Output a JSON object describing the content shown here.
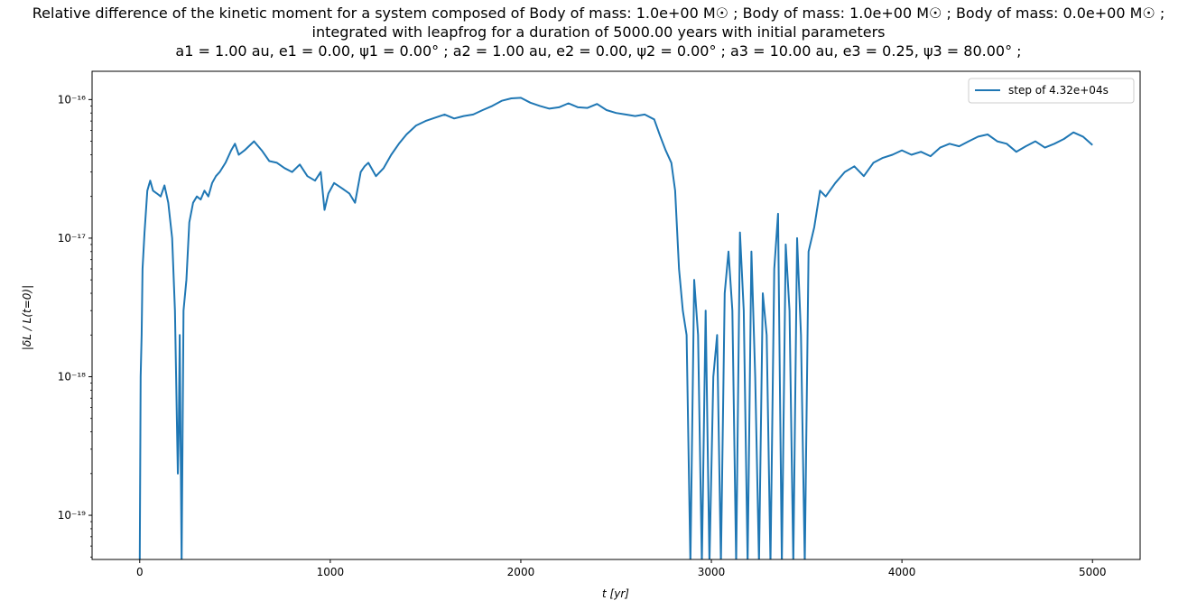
{
  "title": {
    "line1": "Relative difference of the kinetic moment for a system composed of Body of mass: 1.0e+00 M☉ ; Body of mass: 1.0e+00 M☉ ; Body of mass: 0.0e+00 M☉ ;",
    "line2": "integrated with leapfrog for a duration of 5000.00 years with initial parameters",
    "line3": "a1 = 1.00 au, e1 = 0.00, ψ1 = 0.00° ; a2 = 1.00 au, e2 = 0.00, ψ2 = 0.00° ; a3 = 10.00 au, e3 = 0.25, ψ3 = 80.00° ;"
  },
  "colors": {
    "series": "#1f77b4",
    "axes": "#000000",
    "background": "#ffffff"
  },
  "chart_data": {
    "type": "line",
    "xlabel": "t [yr]",
    "ylabel": "|δL / L(t=0)|",
    "yscale": "log",
    "xlim": [
      -250,
      5250
    ],
    "ylim": [
      4.8e-20,
      1.6e-16
    ],
    "x_ticks": [
      0,
      1000,
      2000,
      3000,
      4000,
      5000
    ],
    "x_tick_labels": [
      "0",
      "1000",
      "2000",
      "3000",
      "4000",
      "5000"
    ],
    "y_tick_exponents": [
      -19,
      -18,
      -17,
      -16
    ],
    "y_tick_labels": [
      "10⁻¹⁹",
      "10⁻¹⁸",
      "10⁻¹⁷",
      "10⁻¹⁶"
    ],
    "grid": false,
    "legend_position": "top-right",
    "series": [
      {
        "name": "step of 4.32e+04s",
        "x": [
          0,
          5,
          10,
          15,
          25,
          40,
          55,
          70,
          90,
          110,
          130,
          150,
          170,
          185,
          195,
          200,
          205,
          210,
          220,
          230,
          245,
          260,
          280,
          300,
          320,
          340,
          360,
          380,
          400,
          420,
          450,
          480,
          500,
          520,
          550,
          600,
          640,
          680,
          720,
          760,
          800,
          840,
          880,
          920,
          950,
          970,
          990,
          1020,
          1060,
          1100,
          1130,
          1160,
          1180,
          1200,
          1240,
          1280,
          1320,
          1360,
          1400,
          1450,
          1500,
          1550,
          1600,
          1650,
          1700,
          1750,
          1800,
          1850,
          1900,
          1950,
          2000,
          2050,
          2100,
          2150,
          2200,
          2250,
          2300,
          2350,
          2400,
          2450,
          2500,
          2550,
          2600,
          2650,
          2700,
          2730,
          2760,
          2790,
          2810,
          2830,
          2850,
          2870,
          2890,
          2910,
          2930,
          2950,
          2970,
          2990,
          3010,
          3030,
          3050,
          3070,
          3090,
          3110,
          3130,
          3150,
          3170,
          3190,
          3210,
          3230,
          3250,
          3270,
          3290,
          3310,
          3330,
          3350,
          3370,
          3390,
          3410,
          3430,
          3450,
          3470,
          3490,
          3510,
          3540,
          3570,
          3600,
          3650,
          3700,
          3750,
          3800,
          3850,
          3900,
          3950,
          4000,
          4050,
          4100,
          4150,
          4200,
          4250,
          4300,
          4350,
          4400,
          4450,
          4500,
          4550,
          4600,
          4650,
          4700,
          4750,
          4800,
          4850,
          4900,
          4950,
          5000
        ],
        "y": [
          4.5e-20,
          1e-18,
          2e-18,
          6e-18,
          1.1e-17,
          2.2e-17,
          2.6e-17,
          2.2e-17,
          2.1e-17,
          2e-17,
          2.4e-17,
          1.8e-17,
          1e-17,
          3e-18,
          5e-19,
          2e-19,
          4e-19,
          2e-18,
          4.5e-20,
          3e-18,
          5e-18,
          1.3e-17,
          1.8e-17,
          2e-17,
          1.9e-17,
          2.2e-17,
          2e-17,
          2.5e-17,
          2.8e-17,
          3e-17,
          3.5e-17,
          4.3e-17,
          4.8e-17,
          4e-17,
          4.3e-17,
          5e-17,
          4.3e-17,
          3.6e-17,
          3.5e-17,
          3.2e-17,
          3e-17,
          3.4e-17,
          2.8e-17,
          2.6e-17,
          3e-17,
          1.6e-17,
          2.1e-17,
          2.5e-17,
          2.3e-17,
          2.1e-17,
          1.8e-17,
          3e-17,
          3.3e-17,
          3.5e-17,
          2.8e-17,
          3.2e-17,
          4e-17,
          4.8e-17,
          5.6e-17,
          6.5e-17,
          7e-17,
          7.4e-17,
          7.8e-17,
          7.3e-17,
          7.6e-17,
          7.8e-17,
          8.4e-17,
          9e-17,
          9.8e-17,
          1.02e-16,
          1.03e-16,
          9.5e-17,
          9e-17,
          8.6e-17,
          8.8e-17,
          9.4e-17,
          8.8e-17,
          8.7e-17,
          9.3e-17,
          8.4e-17,
          8e-17,
          7.8e-17,
          7.6e-17,
          7.8e-17,
          7.2e-17,
          5.5e-17,
          4.3e-17,
          3.5e-17,
          2.2e-17,
          6e-18,
          3e-18,
          2e-18,
          4.5e-20,
          5e-18,
          2e-18,
          4.5e-20,
          3e-18,
          4.5e-20,
          1e-18,
          2e-18,
          4.5e-20,
          4e-18,
          8e-18,
          3e-18,
          4.5e-20,
          1.1e-17,
          3e-18,
          4.5e-20,
          8e-18,
          1e-18,
          4.5e-20,
          4e-18,
          2e-18,
          4.5e-20,
          6e-18,
          1.5e-17,
          4.5e-20,
          9e-18,
          3e-18,
          4.5e-20,
          1e-17,
          2e-18,
          4.5e-20,
          8e-18,
          1.2e-17,
          2.2e-17,
          2e-17,
          2.5e-17,
          3e-17,
          3.3e-17,
          2.8e-17,
          3.5e-17,
          3.8e-17,
          4e-17,
          4.3e-17,
          4e-17,
          4.2e-17,
          3.9e-17,
          4.5e-17,
          4.8e-17,
          4.6e-17,
          5e-17,
          5.4e-17,
          5.6e-17,
          5e-17,
          4.8e-17,
          4.2e-17,
          4.6e-17,
          5e-17,
          4.5e-17,
          4.8e-17,
          5.2e-17,
          5.8e-17,
          5.4e-17,
          4.7e-17
        ]
      }
    ]
  }
}
